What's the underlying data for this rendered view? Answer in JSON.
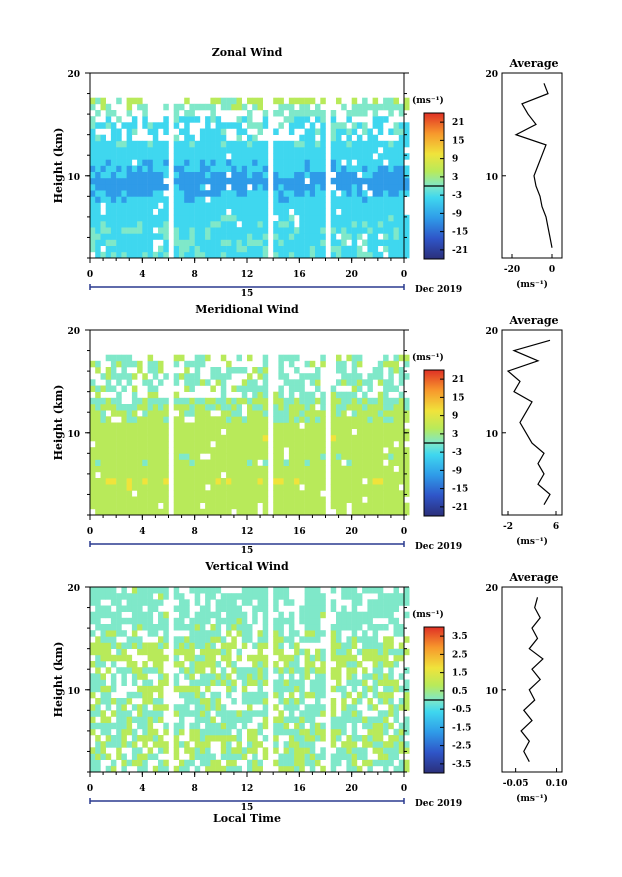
{
  "panels": [
    {
      "key": "zonal",
      "title": "Zonal Wind",
      "ylabel": "Height (km)",
      "y_ticks": [
        "20",
        "10"
      ],
      "x_ticks": [
        "0",
        "4",
        "8",
        "12",
        "16",
        "20",
        "0"
      ],
      "date_day": "15",
      "date_label": "Dec 2019",
      "cbar_unit": "(ms⁻¹)",
      "cbar_ticks": [
        "21",
        "15",
        "9",
        "3",
        "-3",
        "-9",
        "-15",
        "-21"
      ],
      "avg_title": "Average",
      "avg_y_ticks": [
        "20",
        "10"
      ],
      "avg_x_ticks": [
        "-20",
        "0"
      ],
      "avg_unit": "(ms⁻¹)"
    },
    {
      "key": "meridional",
      "title": "Meridional Wind",
      "ylabel": "Height (km)",
      "y_ticks": [
        "20",
        "10"
      ],
      "x_ticks": [
        "0",
        "4",
        "8",
        "12",
        "16",
        "20",
        "0"
      ],
      "date_day": "15",
      "date_label": "Dec 2019",
      "cbar_unit": "(ms⁻¹)",
      "cbar_ticks": [
        "21",
        "15",
        "9",
        "3",
        "-3",
        "-9",
        "-15",
        "-21"
      ],
      "avg_title": "Average",
      "avg_y_ticks": [
        "20",
        "10"
      ],
      "avg_x_ticks": [
        "-2",
        "6"
      ],
      "avg_unit": "(ms⁻¹)"
    },
    {
      "key": "vertical",
      "title": "Vertical Wind",
      "ylabel": "Height (km)",
      "y_ticks": [
        "20",
        "10"
      ],
      "x_ticks": [
        "0",
        "4",
        "8",
        "12",
        "16",
        "20",
        "0"
      ],
      "date_day": "15",
      "date_label": "Dec 2019",
      "cbar_unit": "(ms⁻¹)",
      "cbar_ticks": [
        "3.5",
        "2.5",
        "1.5",
        "0.5",
        "-0.5",
        "-1.5",
        "-2.5",
        "-3.5"
      ],
      "avg_title": "Average",
      "avg_y_ticks": [
        "20",
        "10"
      ],
      "avg_x_ticks": [
        "-0.05",
        "0.10"
      ],
      "avg_unit": "(ms⁻¹)"
    }
  ],
  "xlabel": "Local Time",
  "chart_data": [
    {
      "type": "heatmap",
      "title": "Zonal Wind",
      "xlabel": "",
      "ylabel": "Height (km)",
      "xlim": [
        0,
        24
      ],
      "ylim": [
        2,
        20
      ],
      "colorbar": {
        "unit": "ms-1",
        "range": [
          -21,
          21
        ]
      },
      "missing_time_gaps_h": [
        5.7,
        13.3,
        17.7
      ],
      "profile_by_height": {
        "heights": [
          3,
          5,
          7,
          9,
          11,
          13,
          15,
          17
        ],
        "values": [
          -3,
          -3,
          -5,
          -9,
          -6,
          -3,
          -3,
          3
        ]
      }
    },
    {
      "type": "line",
      "title": "Average",
      "xlabel": "(ms-1)",
      "ylabel": "",
      "xlim": [
        -25,
        5
      ],
      "ylim": [
        2,
        20
      ],
      "series": [
        {
          "y": [
            3,
            4,
            5,
            6,
            7,
            8,
            9,
            10,
            11,
            12,
            13,
            14,
            15,
            16,
            17,
            18,
            19
          ],
          "x": [
            0,
            -1,
            -2,
            -3,
            -5,
            -6,
            -8,
            -9,
            -7,
            -5,
            -3,
            -18,
            -8,
            -12,
            -15,
            -2,
            -4
          ]
        }
      ]
    },
    {
      "type": "heatmap",
      "title": "Meridional Wind",
      "xlabel": "",
      "ylabel": "Height (km)",
      "xlim": [
        0,
        24
      ],
      "ylim": [
        2,
        20
      ],
      "colorbar": {
        "unit": "ms-1",
        "range": [
          -21,
          21
        ]
      },
      "missing_time_gaps_h": [
        5.7,
        13.3,
        17.7
      ],
      "profile_by_height": {
        "heights": [
          3,
          5,
          7,
          9,
          11,
          13,
          15,
          17
        ],
        "values": [
          5,
          6,
          3,
          6,
          3,
          2,
          1,
          2
        ]
      }
    },
    {
      "type": "line",
      "title": "Average",
      "xlabel": "(ms-1)",
      "ylabel": "",
      "xlim": [
        -3,
        7
      ],
      "ylim": [
        2,
        20
      ],
      "series": [
        {
          "y": [
            3,
            4,
            5,
            6,
            7,
            8,
            9,
            10,
            11,
            12,
            13,
            14,
            15,
            16,
            17,
            18,
            19
          ],
          "x": [
            4,
            5,
            3,
            4,
            3,
            4,
            2,
            1,
            0,
            1,
            2,
            -1,
            0,
            -2,
            3,
            -1,
            5
          ]
        }
      ]
    },
    {
      "type": "heatmap",
      "title": "Vertical Wind",
      "xlabel": "Local Time",
      "ylabel": "Height (km)",
      "xlim": [
        0,
        24
      ],
      "ylim": [
        2,
        20
      ],
      "colorbar": {
        "unit": "ms-1",
        "range": [
          -3.5,
          3.5
        ]
      },
      "missing_time_gaps_h": [
        5.7,
        13.3,
        17.7
      ],
      "profile_by_height": {
        "heights": [
          3,
          5,
          7,
          9,
          11,
          13,
          15,
          17
        ],
        "values": [
          0.3,
          0.5,
          0.2,
          0.4,
          0.3,
          0.6,
          0.2,
          0.1
        ]
      }
    },
    {
      "type": "line",
      "title": "Average",
      "xlabel": "(ms-1)",
      "ylabel": "",
      "xlim": [
        -0.1,
        0.12
      ],
      "ylim": [
        2,
        20
      ],
      "series": [
        {
          "y": [
            3,
            4,
            5,
            6,
            7,
            8,
            9,
            10,
            11,
            12,
            13,
            14,
            15,
            16,
            17,
            18,
            19
          ],
          "x": [
            0.0,
            -0.02,
            0.0,
            -0.03,
            0.01,
            -0.02,
            0.02,
            0.0,
            0.04,
            0.01,
            0.05,
            0.0,
            0.03,
            0.01,
            0.04,
            0.02,
            0.03
          ]
        }
      ]
    }
  ]
}
